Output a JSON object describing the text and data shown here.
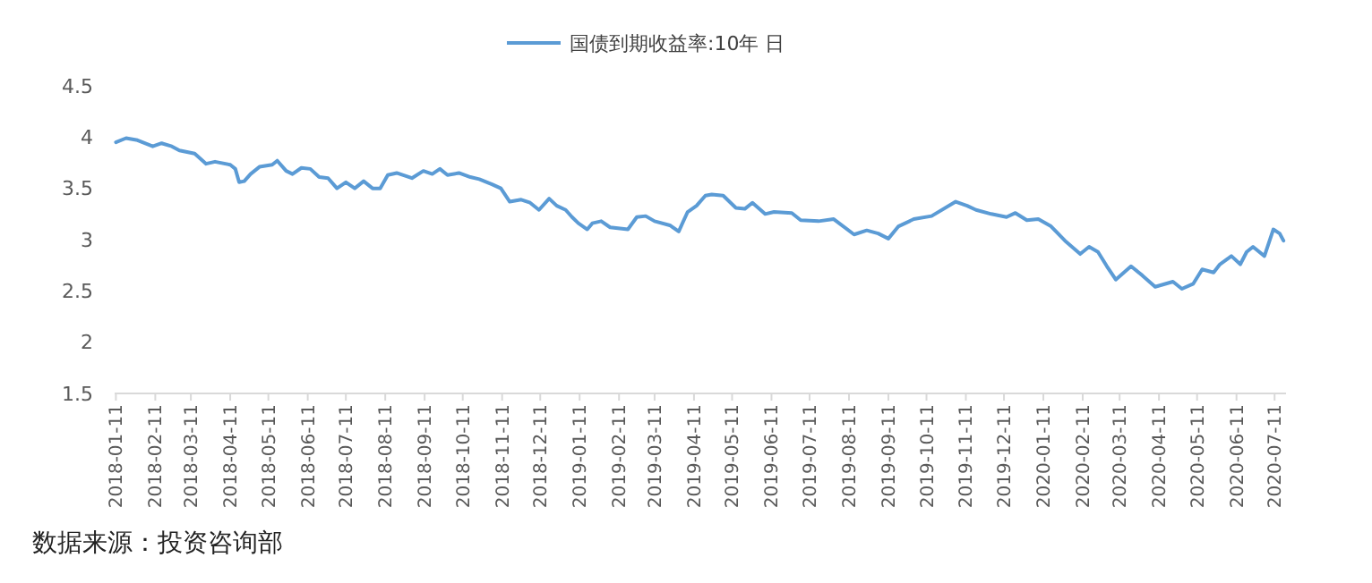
{
  "chart_data": {
    "type": "line",
    "legend": "top",
    "grid": false,
    "marker": "none",
    "line_style": "solid",
    "annotations": [
      "数据来源：投资咨询部"
    ],
    "xlim": [
      "2018-01-10",
      "2020-07-20"
    ],
    "xticks": [
      "2018-01-11",
      "2018-02-11",
      "2018-03-11",
      "2018-04-11",
      "2018-05-11",
      "2018-06-11",
      "2018-07-11",
      "2018-08-11",
      "2018-09-11",
      "2018-10-11",
      "2018-11-11",
      "2018-12-11",
      "2019-01-11",
      "2019-02-11",
      "2019-03-11",
      "2019-04-11",
      "2019-05-11",
      "2019-06-11",
      "2019-07-11",
      "2019-08-11",
      "2019-09-11",
      "2019-10-11",
      "2019-11-11",
      "2019-12-11",
      "2020-01-11",
      "2020-02-11",
      "2020-03-11",
      "2020-04-11",
      "2020-05-11",
      "2020-06-11",
      "2020-07-11"
    ],
    "ylim": [
      1.5,
      4.5
    ],
    "yticks": [
      1.5,
      2,
      2.5,
      3,
      3.5,
      4,
      4.5
    ],
    "series": [
      {
        "name": "国债到期收益率:10年 日",
        "color": "#5b9bd5",
        "x": [
          "2018-01-11",
          "2018-01-19",
          "2018-01-28",
          "2018-02-09",
          "2018-02-16",
          "2018-02-24",
          "2018-03-02",
          "2018-03-14",
          "2018-03-23",
          "2018-03-30",
          "2018-04-11",
          "2018-04-15",
          "2018-04-18",
          "2018-04-22",
          "2018-04-27",
          "2018-05-04",
          "2018-05-14",
          "2018-05-18",
          "2018-05-25",
          "2018-05-30",
          "2018-06-06",
          "2018-06-13",
          "2018-06-20",
          "2018-06-27",
          "2018-07-04",
          "2018-07-11",
          "2018-07-18",
          "2018-07-25",
          "2018-08-01",
          "2018-08-07",
          "2018-08-13",
          "2018-08-20",
          "2018-09-01",
          "2018-09-10",
          "2018-09-17",
          "2018-09-23",
          "2018-09-29",
          "2018-10-08",
          "2018-10-17",
          "2018-10-24",
          "2018-11-03",
          "2018-11-10",
          "2018-11-17",
          "2018-11-26",
          "2018-12-03",
          "2018-12-10",
          "2018-12-18",
          "2018-12-24",
          "2018-12-31",
          "2019-01-05",
          "2019-01-10",
          "2019-01-17",
          "2019-01-21",
          "2019-01-28",
          "2019-02-04",
          "2019-02-18",
          "2019-02-25",
          "2019-03-04",
          "2019-03-11",
          "2019-03-23",
          "2019-03-30",
          "2019-04-06",
          "2019-04-13",
          "2019-04-20",
          "2019-04-25",
          "2019-05-04",
          "2019-05-14",
          "2019-05-21",
          "2019-05-27",
          "2019-06-06",
          "2019-06-13",
          "2019-06-27",
          "2019-07-04",
          "2019-07-18",
          "2019-07-30",
          "2019-08-15",
          "2019-08-25",
          "2019-09-03",
          "2019-09-11",
          "2019-09-19",
          "2019-10-01",
          "2019-10-15",
          "2019-11-03",
          "2019-11-12",
          "2019-11-19",
          "2019-12-01",
          "2019-12-13",
          "2019-12-20",
          "2019-12-29",
          "2020-01-07",
          "2020-01-17",
          "2020-01-28",
          "2020-02-09",
          "2020-02-16",
          "2020-02-23",
          "2020-03-01",
          "2020-03-08",
          "2020-03-20",
          "2020-03-29",
          "2020-04-08",
          "2020-04-22",
          "2020-04-29",
          "2020-05-08",
          "2020-05-15",
          "2020-05-24",
          "2020-05-29",
          "2020-06-07",
          "2020-06-14",
          "2020-06-19",
          "2020-06-24",
          "2020-07-03",
          "2020-07-10",
          "2020-07-15",
          "2020-07-18"
        ],
        "values": [
          3.95,
          3.99,
          3.97,
          3.91,
          3.94,
          3.91,
          3.87,
          3.84,
          3.74,
          3.76,
          3.73,
          3.69,
          3.56,
          3.57,
          3.64,
          3.71,
          3.73,
          3.77,
          3.67,
          3.64,
          3.7,
          3.69,
          3.61,
          3.6,
          3.5,
          3.56,
          3.5,
          3.57,
          3.5,
          3.5,
          3.63,
          3.65,
          3.6,
          3.67,
          3.64,
          3.69,
          3.63,
          3.65,
          3.61,
          3.59,
          3.54,
          3.5,
          3.37,
          3.39,
          3.36,
          3.29,
          3.4,
          3.33,
          3.29,
          3.22,
          3.16,
          3.1,
          3.16,
          3.18,
          3.12,
          3.1,
          3.22,
          3.23,
          3.18,
          3.14,
          3.08,
          3.27,
          3.33,
          3.43,
          3.44,
          3.43,
          3.31,
          3.3,
          3.36,
          3.25,
          3.27,
          3.26,
          3.19,
          3.18,
          3.2,
          3.05,
          3.09,
          3.06,
          3.01,
          3.13,
          3.2,
          3.23,
          3.37,
          3.33,
          3.29,
          3.25,
          3.22,
          3.26,
          3.19,
          3.2,
          3.13,
          2.99,
          2.86,
          2.93,
          2.88,
          2.74,
          2.61,
          2.74,
          2.65,
          2.54,
          2.59,
          2.52,
          2.57,
          2.71,
          2.68,
          2.76,
          2.84,
          2.76,
          2.88,
          2.93,
          2.84,
          3.1,
          3.06,
          2.99
        ]
      }
    ]
  }
}
